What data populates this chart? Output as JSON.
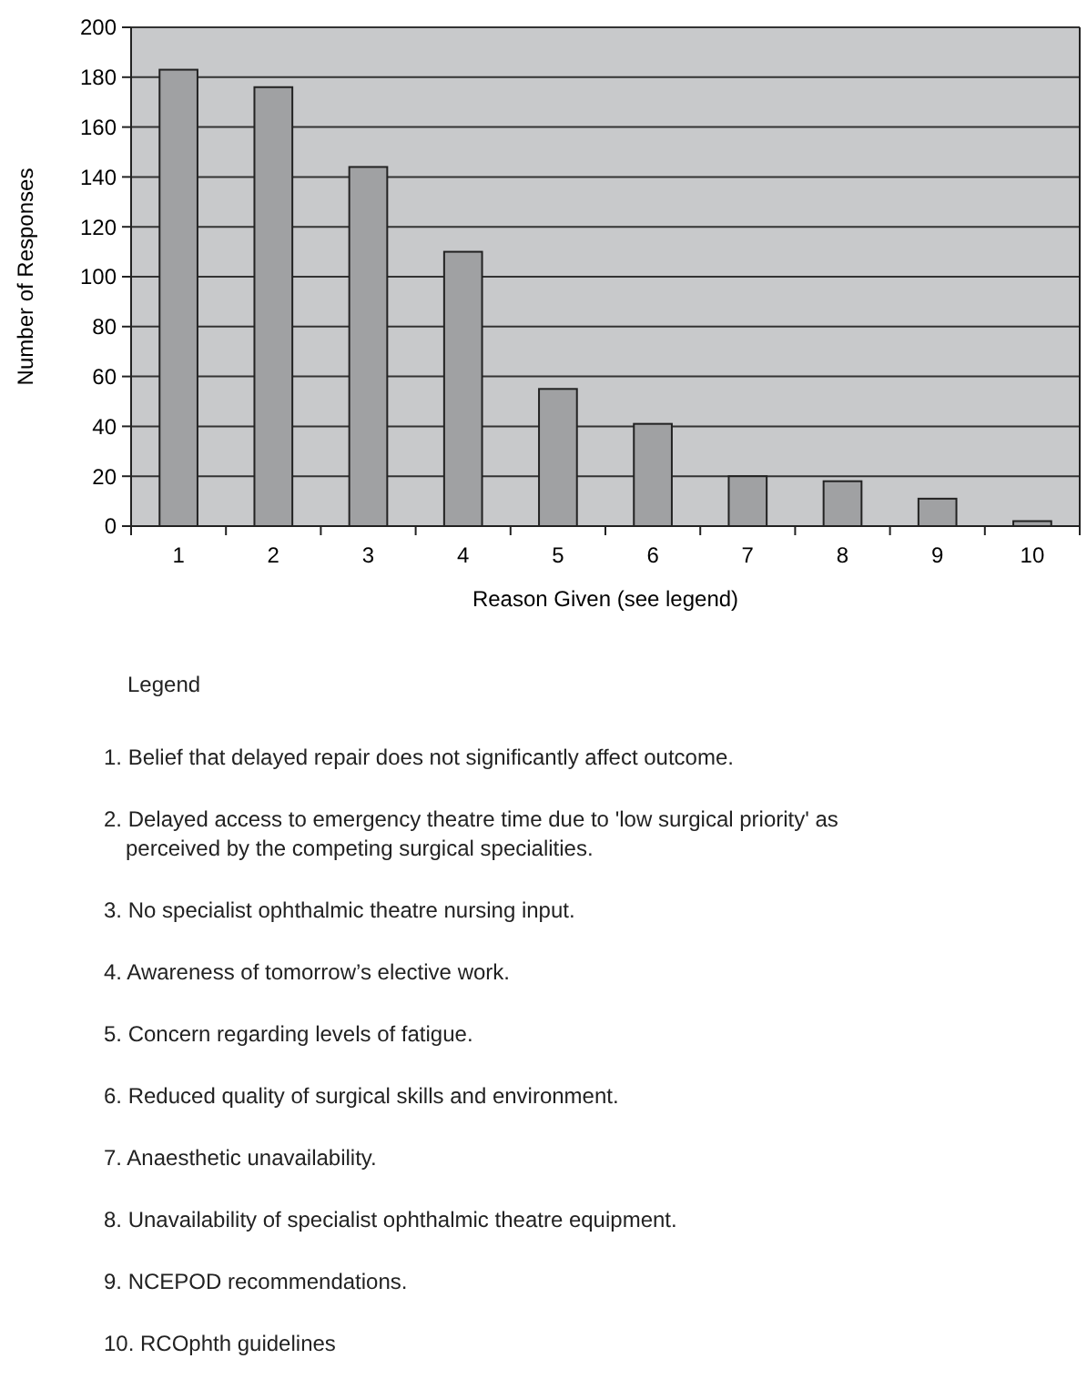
{
  "chart_data": {
    "type": "bar",
    "xlabel": "Reason Given (see legend)",
    "ylabel": "Number of Responses",
    "categories": [
      "1",
      "2",
      "3",
      "4",
      "5",
      "6",
      "7",
      "8",
      "9",
      "10"
    ],
    "values": [
      183,
      176,
      144,
      110,
      55,
      41,
      20,
      18,
      11,
      2
    ],
    "color": "#a0a1a3",
    "ylim": [
      0,
      200
    ],
    "yticks": [
      0,
      20,
      40,
      60,
      80,
      100,
      120,
      140,
      160,
      180,
      200
    ],
    "grid": "y",
    "annotations": [
      "Legend",
      "1. Belief that delayed repair does not significantly affect outcome.",
      "2. Delayed access to emergency theatre time due to 'low surgical priority' as perceived by the competing surgical specialities.",
      "3. No specialist ophthalmic theatre nursing input.",
      "4. Awareness of tomorrow’s elective work.",
      "5. Concern regarding levels of fatigue.",
      "6. Reduced quality of surgical skills and environment.",
      "7. Anaesthetic unavailability.",
      "8. Unavailability of specialist ophthalmic theatre equipment.",
      "9. NCEPOD recommendations.",
      "10. RCOphth guidelines"
    ]
  }
}
